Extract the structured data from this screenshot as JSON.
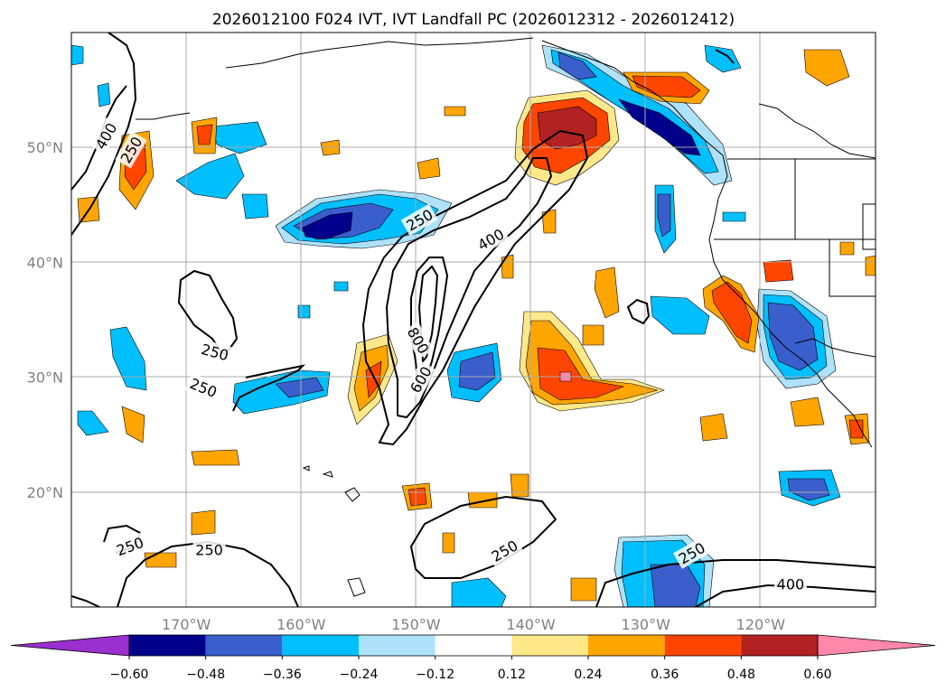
{
  "chart_data": {
    "type": "heatmap",
    "title": "2026012100 F024 IVT, IVT Landfall PC (2026012312 - 2026012412)",
    "projection": "lat-lon map, North Pacific / US West Coast",
    "lon_range": [
      -180,
      -110
    ],
    "lat_range": [
      10,
      60
    ],
    "grid": true,
    "x_ticks": [
      {
        "lon": -170,
        "label": "170°W"
      },
      {
        "lon": -160,
        "label": "160°W"
      },
      {
        "lon": -150,
        "label": "150°W"
      },
      {
        "lon": -140,
        "label": "140°W"
      },
      {
        "lon": -130,
        "label": "130°W"
      },
      {
        "lon": -120,
        "label": "120°W"
      }
    ],
    "y_ticks": [
      {
        "lat": 50,
        "label": "50°N"
      },
      {
        "lat": 40,
        "label": "40°N"
      },
      {
        "lat": 30,
        "label": "30°N"
      },
      {
        "lat": 20,
        "label": "20°N"
      }
    ],
    "colorbar": {
      "ticks": [
        "−0.60",
        "−0.48",
        "−0.36",
        "−0.24",
        "−0.12",
        "0.12",
        "0.24",
        "0.36",
        "0.48",
        "0.60"
      ],
      "bins": [
        {
          "from": null,
          "to": -0.6,
          "color": "#9b30d0"
        },
        {
          "from": -0.6,
          "to": -0.48,
          "color": "#00008b"
        },
        {
          "from": -0.48,
          "to": -0.36,
          "color": "#3a5fcd"
        },
        {
          "from": -0.36,
          "to": -0.24,
          "color": "#00bfff"
        },
        {
          "from": -0.24,
          "to": -0.12,
          "color": "#aee2fa"
        },
        {
          "from": -0.12,
          "to": 0.12,
          "color": "#ffffff"
        },
        {
          "from": 0.12,
          "to": 0.24,
          "color": "#ffe88a"
        },
        {
          "from": 0.24,
          "to": 0.36,
          "color": "#ffa500"
        },
        {
          "from": 0.36,
          "to": 0.48,
          "color": "#ff4500"
        },
        {
          "from": 0.48,
          "to": 0.6,
          "color": "#b22222"
        },
        {
          "from": 0.6,
          "to": null,
          "color": "#ff88aa"
        }
      ]
    },
    "ivt_contour_labels": [
      {
        "text": "400",
        "lon": -177.0,
        "lat": 51.0,
        "rotate": -60
      },
      {
        "text": "250",
        "lon": -174.8,
        "lat": 49.8,
        "rotate": -60
      },
      {
        "text": "250",
        "lon": -149.7,
        "lat": 43.7,
        "rotate": -30
      },
      {
        "text": "400",
        "lon": -143.5,
        "lat": 42.0,
        "rotate": -30
      },
      {
        "text": "250",
        "lon": -167.5,
        "lat": 32.2,
        "rotate": 15
      },
      {
        "text": "250",
        "lon": -168.5,
        "lat": 29.1,
        "rotate": 22
      },
      {
        "text": "800",
        "lon": -149.8,
        "lat": 33.2,
        "rotate": 60
      },
      {
        "text": "600",
        "lon": -149.6,
        "lat": 29.8,
        "rotate": -60
      },
      {
        "text": "250",
        "lon": -174.9,
        "lat": 15.3,
        "rotate": -20
      },
      {
        "text": "250",
        "lon": -168.0,
        "lat": 15.0,
        "rotate": 0
      },
      {
        "text": "250",
        "lon": -142.3,
        "lat": 14.9,
        "rotate": -30
      },
      {
        "text": "250",
        "lon": -126.0,
        "lat": 14.7,
        "rotate": -30
      },
      {
        "text": "400",
        "lon": -117.4,
        "lat": 12.0,
        "rotate": 0
      }
    ]
  }
}
